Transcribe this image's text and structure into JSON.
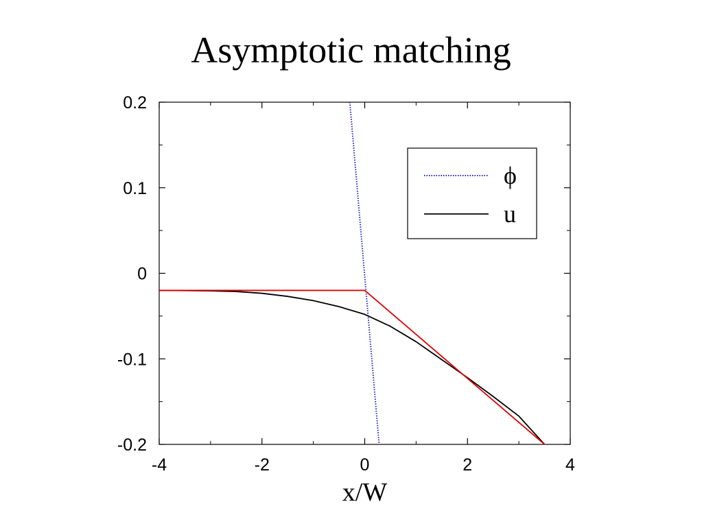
{
  "slide": {
    "title": "Asymptotic matching"
  },
  "chart_data": {
    "type": "line",
    "title": "",
    "xlabel": "x/W",
    "ylabel": "",
    "xlim": [
      -4,
      4
    ],
    "ylim": [
      -0.2,
      0.2
    ],
    "x_ticks": [
      -4,
      -2,
      0,
      2,
      4
    ],
    "x_tick_labels": [
      "-4",
      "-2",
      "0",
      "2",
      "4"
    ],
    "y_ticks": [
      0.2,
      0.1,
      0,
      -0.1,
      -0.2
    ],
    "y_tick_labels": [
      "0.2",
      "0.1",
      "0",
      "-0.1",
      "-0.2"
    ],
    "grid": false,
    "legend_position": "top-right",
    "series": [
      {
        "name": "ϕ",
        "color": "#2020c0",
        "style": "dotted",
        "x": [
          -0.29,
          0.28
        ],
        "y": [
          0.2,
          -0.2
        ]
      },
      {
        "name": "u",
        "color": "#000000",
        "style": "solid",
        "x": [
          -4.0,
          -3.5,
          -3.0,
          -2.5,
          -2.0,
          -1.5,
          -1.0,
          -0.5,
          0.0,
          0.5,
          1.0,
          1.5,
          2.0,
          2.5,
          3.0,
          3.5
        ],
        "y": [
          -0.0201,
          -0.0202,
          -0.0205,
          -0.0213,
          -0.0234,
          -0.027,
          -0.032,
          -0.039,
          -0.048,
          -0.062,
          -0.08,
          -0.101,
          -0.122,
          -0.144,
          -0.167,
          -0.2
        ]
      },
      {
        "name": "",
        "color": "#e00000",
        "style": "solid",
        "x": [
          -4.0,
          0.0,
          3.5
        ],
        "y": [
          -0.02,
          -0.02,
          -0.2
        ]
      }
    ]
  }
}
